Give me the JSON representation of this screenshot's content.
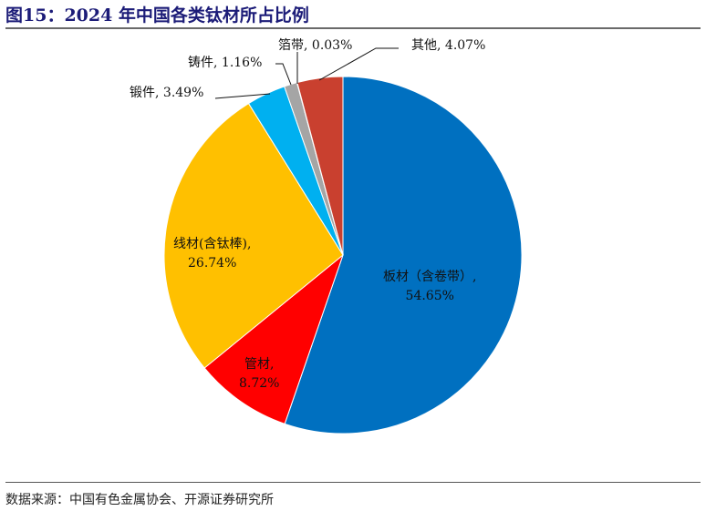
{
  "title": "图15：2024 年中国各类钛材所占比例",
  "source": "数据来源：中国有色金属协会、开源证券研究所",
  "chart_data": {
    "type": "pie",
    "title": "2024 年中国各类钛材所占比例",
    "start": "top",
    "direction": "clockwise",
    "slices": [
      {
        "name": "板材（含卷带）",
        "value": 54.65,
        "label": "54.65%",
        "color": "#0070C0"
      },
      {
        "name": "管材",
        "value": 8.72,
        "label": "8.72%",
        "color": "#FF0000"
      },
      {
        "name": "线材(含钛棒)",
        "value": 26.74,
        "label": "26.74%",
        "color": "#FFC000"
      },
      {
        "name": "锻件",
        "value": 3.49,
        "label": "3.49%",
        "color": "#00B0F0"
      },
      {
        "name": "铸件",
        "value": 1.16,
        "label": "1.16%",
        "color": "#A5A5A5"
      },
      {
        "name": "箔带",
        "value": 0.03,
        "label": "0.03%",
        "color": "#FFC000"
      },
      {
        "name": "其他",
        "value": 4.07,
        "label": "4.07%",
        "color": "#C9402F"
      }
    ]
  }
}
